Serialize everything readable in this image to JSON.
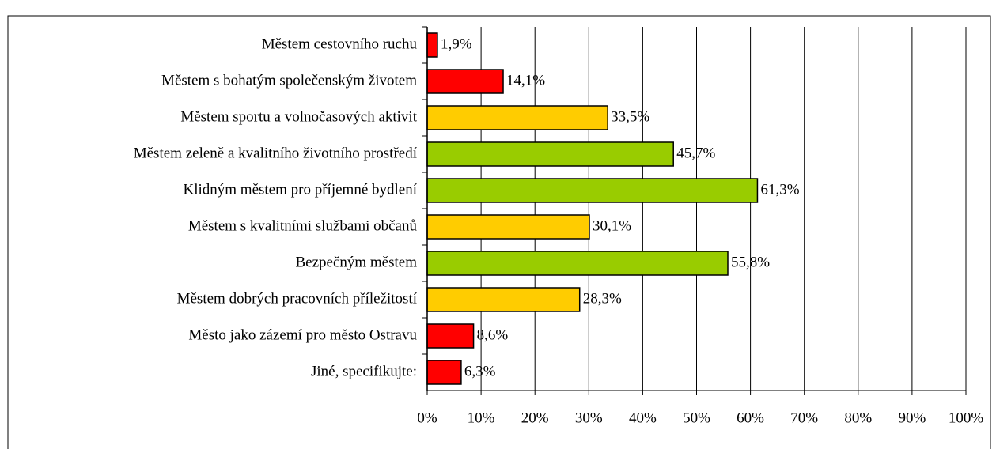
{
  "chart_data": {
    "type": "bar",
    "orientation": "horizontal",
    "categories": [
      "Městem cestovního ruchu",
      "Městem s bohatým společenským životem",
      "Městem sportu a volnočasových aktivit",
      "Městem zeleně a kvalitního životního prostředí",
      "Klidným městem pro příjemné bydlení",
      "Městem s kvalitními službami občanů",
      "Bezpečným městem",
      "Městem dobrých pracovních příležitostí",
      "Město jako zázemí pro město Ostravu",
      "Jiné, specifikujte:"
    ],
    "values": [
      1.9,
      14.1,
      33.5,
      45.7,
      61.3,
      30.1,
      55.8,
      28.3,
      8.6,
      6.3
    ],
    "value_labels": [
      "1,9%",
      "14,1%",
      "33,5%",
      "45,7%",
      "61,3%",
      "30,1%",
      "55,8%",
      "28,3%",
      "8,6%",
      "6,3%"
    ],
    "colors": [
      "#ff0000",
      "#ff0000",
      "#ffcc00",
      "#99cc00",
      "#99cc00",
      "#ffcc00",
      "#99cc00",
      "#ffcc00",
      "#ff0000",
      "#ff0000"
    ],
    "xlim": [
      0,
      100
    ],
    "xticks": [
      {
        "value": 0,
        "label": "0%"
      },
      {
        "value": 10,
        "label": "10%"
      },
      {
        "value": 20,
        "label": "20%"
      },
      {
        "value": 30,
        "label": "30%"
      },
      {
        "value": 40,
        "label": "40%"
      },
      {
        "value": 50,
        "label": "50%"
      },
      {
        "value": 60,
        "label": "60%"
      },
      {
        "value": 70,
        "label": "70%"
      },
      {
        "value": 80,
        "label": "80%"
      },
      {
        "value": 90,
        "label": "90%"
      },
      {
        "value": 100,
        "label": "100%"
      }
    ],
    "grid": true
  }
}
